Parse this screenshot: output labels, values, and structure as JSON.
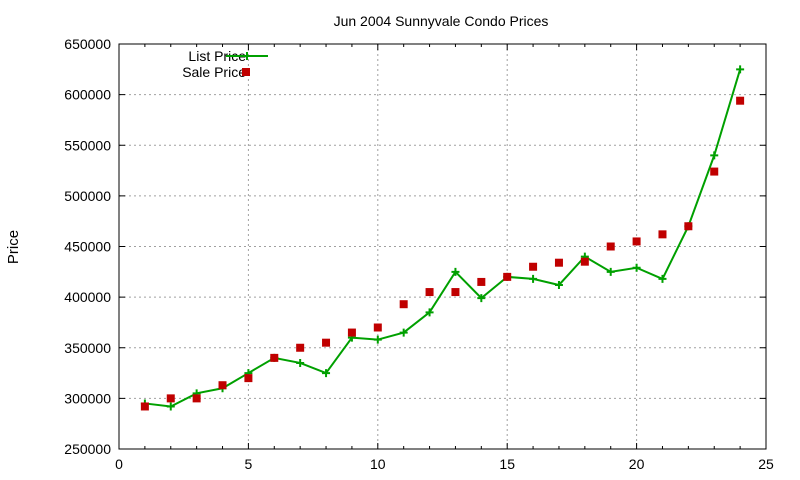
{
  "chart_data": {
    "type": "line",
    "title": "Jun 2004 Sunnyvale Condo Prices",
    "xlabel": "",
    "ylabel": "Price",
    "xlim": [
      0,
      25
    ],
    "ylim": [
      250000,
      650000
    ],
    "xticks": [
      "0",
      "5",
      "10",
      "15",
      "20",
      "25"
    ],
    "yticks": [
      "250000",
      "300000",
      "350000",
      "400000",
      "450000",
      "500000",
      "550000",
      "600000",
      "650000"
    ],
    "grid": true,
    "legend_position": "top-left",
    "series": [
      {
        "name": "List Price",
        "style": "line-plus",
        "color": "#00a000",
        "x": [
          1,
          2,
          3,
          4,
          5,
          6,
          7,
          8,
          9,
          10,
          11,
          12,
          13,
          14,
          15,
          16,
          17,
          18,
          19,
          20,
          21,
          22,
          23,
          24
        ],
        "y": [
          295000,
          292000,
          305000,
          310000,
          325000,
          340000,
          335000,
          325000,
          360000,
          358000,
          365000,
          385000,
          425000,
          399000,
          420000,
          418000,
          412000,
          440000,
          425000,
          429000,
          418000,
          470000,
          540000,
          625000
        ]
      },
      {
        "name": "Sale Price",
        "style": "square-points",
        "color": "#c00000",
        "x": [
          1,
          2,
          3,
          4,
          5,
          6,
          7,
          8,
          9,
          10,
          11,
          12,
          13,
          14,
          15,
          16,
          17,
          18,
          19,
          20,
          21,
          22,
          23,
          24
        ],
        "y": [
          292000,
          300000,
          300000,
          313000,
          320000,
          340000,
          350000,
          355000,
          365000,
          370000,
          393000,
          405000,
          405000,
          415000,
          420000,
          430000,
          434000,
          435000,
          450000,
          455000,
          462000,
          470000,
          524000,
          594000
        ]
      }
    ]
  }
}
